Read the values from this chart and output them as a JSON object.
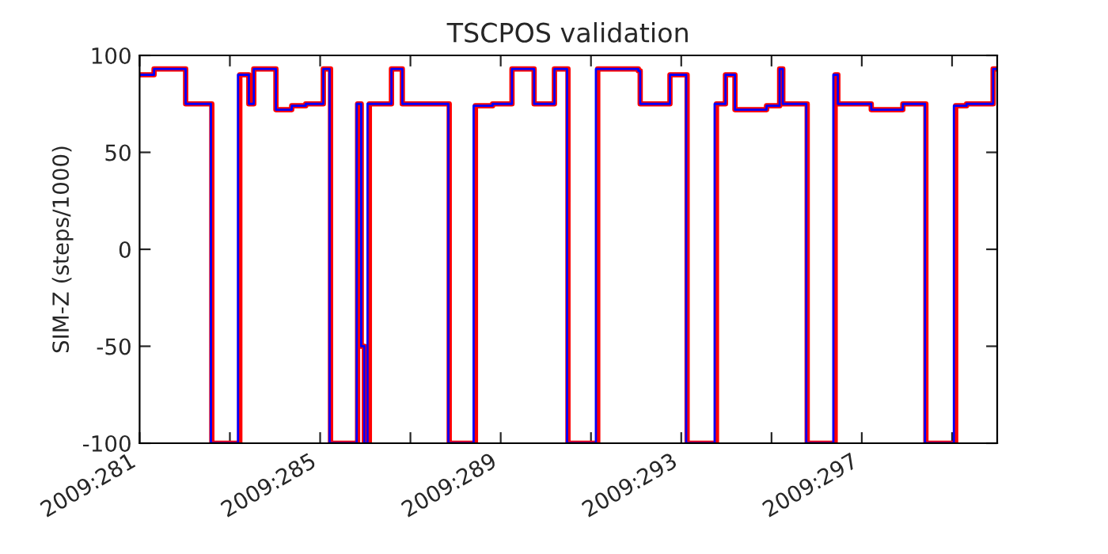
{
  "chart_data": {
    "type": "step",
    "title": "TSCPOS validation",
    "ylabel": "SIM-Z (steps/1000)",
    "xlim": [
      "2009-10-08",
      "2009-10-27"
    ],
    "ylim": [
      -100,
      100
    ],
    "xticks": [
      {
        "value": "2009-10-08",
        "label": "2009:281"
      },
      {
        "value": "2009-10-10",
        "label": null
      },
      {
        "value": "2009-10-12",
        "label": "2009:285"
      },
      {
        "value": "2009-10-14",
        "label": null
      },
      {
        "value": "2009-10-16",
        "label": "2009:289"
      },
      {
        "value": "2009-10-18",
        "label": null
      },
      {
        "value": "2009-10-20",
        "label": "2009:293"
      },
      {
        "value": "2009-10-22",
        "label": null
      },
      {
        "value": "2009-10-24",
        "label": "2009:297"
      },
      {
        "value": "2009-10-26",
        "label": null
      }
    ],
    "yticks": [
      -100,
      -50,
      0,
      50,
      100
    ],
    "grid": false,
    "legend": false,
    "series": [
      {
        "color": "#ff0000",
        "x": [
          "2009-10-08T00:00",
          "2009-10-08T07:41",
          "2009-10-09T00:29",
          "2009-10-09T14:24",
          "2009-10-10T05:17",
          "2009-10-10T10:05",
          "2009-10-10T12:43",
          "2009-10-11T00:29",
          "2009-10-11T08:53",
          "2009-10-11T16:19",
          "2009-10-12T01:41",
          "2009-10-12T05:31",
          "2009-10-12T19:55",
          "2009-10-12T21:50",
          "2009-10-12T23:31",
          "2009-10-13T02:10",
          "2009-10-13T13:55",
          "2009-10-13T19:41",
          "2009-10-14T20:38",
          "2009-10-15T10:34",
          "2009-10-15T19:41",
          "2009-10-16T06:00",
          "2009-10-16T17:46",
          "2009-10-17T04:34",
          "2009-10-17T11:46",
          "2009-10-18T03:36",
          "2009-10-19T01:12",
          "2009-10-19T02:10",
          "2009-10-19T18:00",
          "2009-10-20T03:07",
          "2009-10-20T18:43",
          "2009-10-20T23:31",
          "2009-10-21T04:34",
          "2009-10-21T21:22",
          "2009-10-22T04:19",
          "2009-10-22T06:00",
          "2009-10-22T18:58",
          "2009-10-23T09:50",
          "2009-10-23T11:17",
          "2009-10-24T05:02",
          "2009-10-24T21:50",
          "2009-10-25T10:05",
          "2009-10-26T01:55",
          "2009-10-26T07:41",
          "2009-10-26T21:50",
          "2009-10-27T00:00"
        ],
        "values": [
          90,
          93,
          75,
          -100,
          90,
          75,
          93,
          72,
          74,
          75,
          93,
          -100,
          75,
          -50,
          -100,
          75,
          93,
          75,
          -100,
          74,
          75,
          93,
          75,
          93,
          -100,
          93,
          92,
          75,
          90,
          -100,
          75,
          90,
          72,
          74,
          93,
          75,
          -100,
          90,
          75,
          72,
          75,
          -100,
          74,
          75,
          93,
          93
        ]
      },
      {
        "color": "#0000ff",
        "x": [
          "2009-10-08T00:00",
          "2009-10-08T07:41",
          "2009-10-09T00:29",
          "2009-10-09T13:55",
          "2009-10-10T04:19",
          "2009-10-10T10:05",
          "2009-10-10T12:43",
          "2009-10-11T00:29",
          "2009-10-11T08:53",
          "2009-10-11T16:19",
          "2009-10-12T01:41",
          "2009-10-12T05:02",
          "2009-10-12T19:26",
          "2009-10-12T21:50",
          "2009-10-12T23:31",
          "2009-10-13T01:12",
          "2009-10-13T13:55",
          "2009-10-13T19:41",
          "2009-10-14T20:10",
          "2009-10-15T09:36",
          "2009-10-15T19:41",
          "2009-10-16T06:00",
          "2009-10-16T17:46",
          "2009-10-17T04:34",
          "2009-10-17T11:17",
          "2009-10-18T02:38",
          "2009-10-19T01:12",
          "2009-10-19T02:10",
          "2009-10-19T18:00",
          "2009-10-20T02:38",
          "2009-10-20T17:46",
          "2009-10-20T23:31",
          "2009-10-21T04:34",
          "2009-10-21T21:22",
          "2009-10-22T04:19",
          "2009-10-22T06:00",
          "2009-10-22T18:29",
          "2009-10-23T08:53",
          "2009-10-23T11:17",
          "2009-10-24T05:02",
          "2009-10-24T21:50",
          "2009-10-25T09:36",
          "2009-10-26T00:58",
          "2009-10-26T07:41",
          "2009-10-26T21:50",
          "2009-10-27T00:00"
        ],
        "values": [
          90,
          93,
          75,
          -100,
          90,
          75,
          93,
          72,
          74,
          75,
          93,
          -100,
          75,
          -50,
          -100,
          75,
          93,
          75,
          -100,
          74,
          75,
          93,
          75,
          93,
          -100,
          93,
          92,
          75,
          90,
          -100,
          75,
          90,
          72,
          74,
          93,
          75,
          -100,
          90,
          75,
          72,
          75,
          -100,
          74,
          75,
          93,
          93
        ]
      }
    ]
  }
}
